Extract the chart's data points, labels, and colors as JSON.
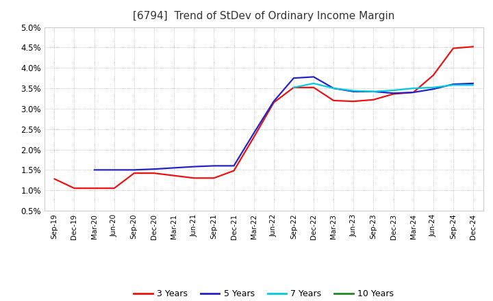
{
  "title": "[6794]  Trend of StDev of Ordinary Income Margin",
  "title_fontsize": 11,
  "title_color": "#333333",
  "background_color": "#ffffff",
  "plot_bg_color": "#ffffff",
  "grid_color": "#999999",
  "ylim": [
    0.005,
    0.05
  ],
  "yticks": [
    0.005,
    0.01,
    0.015,
    0.02,
    0.025,
    0.03,
    0.035,
    0.04,
    0.045,
    0.05
  ],
  "ytick_labels": [
    "0.5%",
    "1.0%",
    "1.5%",
    "2.0%",
    "2.5%",
    "3.0%",
    "3.5%",
    "4.0%",
    "4.5%",
    "5.0%"
  ],
  "x_labels": [
    "Sep-19",
    "Dec-19",
    "Mar-20",
    "Jun-20",
    "Sep-20",
    "Dec-20",
    "Mar-21",
    "Jun-21",
    "Sep-21",
    "Dec-21",
    "Mar-22",
    "Jun-22",
    "Sep-22",
    "Dec-22",
    "Mar-23",
    "Jun-23",
    "Sep-23",
    "Dec-23",
    "Mar-24",
    "Jun-24",
    "Sep-24",
    "Dec-24"
  ],
  "series": [
    {
      "name": "3 Years",
      "color": "#ee1111",
      "linewidth": 1.6,
      "values": [
        0.0128,
        0.0105,
        0.0105,
        0.0105,
        0.0142,
        0.0142,
        0.0136,
        0.013,
        0.013,
        0.0148,
        0.023,
        0.0315,
        0.0352,
        0.0352,
        0.032,
        0.0318,
        0.0322,
        0.0336,
        0.034,
        0.0382,
        0.0448,
        0.0452
      ]
    },
    {
      "name": "5 Years",
      "color": "#2222cc",
      "linewidth": 1.6,
      "values": [
        null,
        null,
        0.015,
        0.015,
        0.015,
        0.0152,
        0.0155,
        0.0158,
        0.016,
        0.016,
        0.024,
        0.0318,
        0.0375,
        0.0378,
        0.035,
        0.0342,
        0.0342,
        0.0338,
        0.034,
        0.0348,
        0.036,
        0.0362
      ]
    },
    {
      "name": "7 Years",
      "color": "#00ccdd",
      "linewidth": 1.6,
      "values": [
        null,
        null,
        null,
        null,
        null,
        null,
        null,
        null,
        null,
        null,
        null,
        null,
        0.0352,
        0.0362,
        0.035,
        0.0344,
        0.0342,
        0.0345,
        0.035,
        0.0352,
        0.0358,
        0.0358
      ]
    },
    {
      "name": "10 Years",
      "color": "#228822",
      "linewidth": 1.6,
      "values": [
        null,
        null,
        null,
        null,
        null,
        null,
        null,
        null,
        null,
        null,
        null,
        null,
        null,
        null,
        null,
        null,
        null,
        null,
        null,
        null,
        null,
        null
      ]
    }
  ],
  "legend_labels": [
    "3 Years",
    "5 Years",
    "7 Years",
    "10 Years"
  ],
  "legend_colors": [
    "#ee1111",
    "#2222cc",
    "#00ccdd",
    "#228822"
  ]
}
